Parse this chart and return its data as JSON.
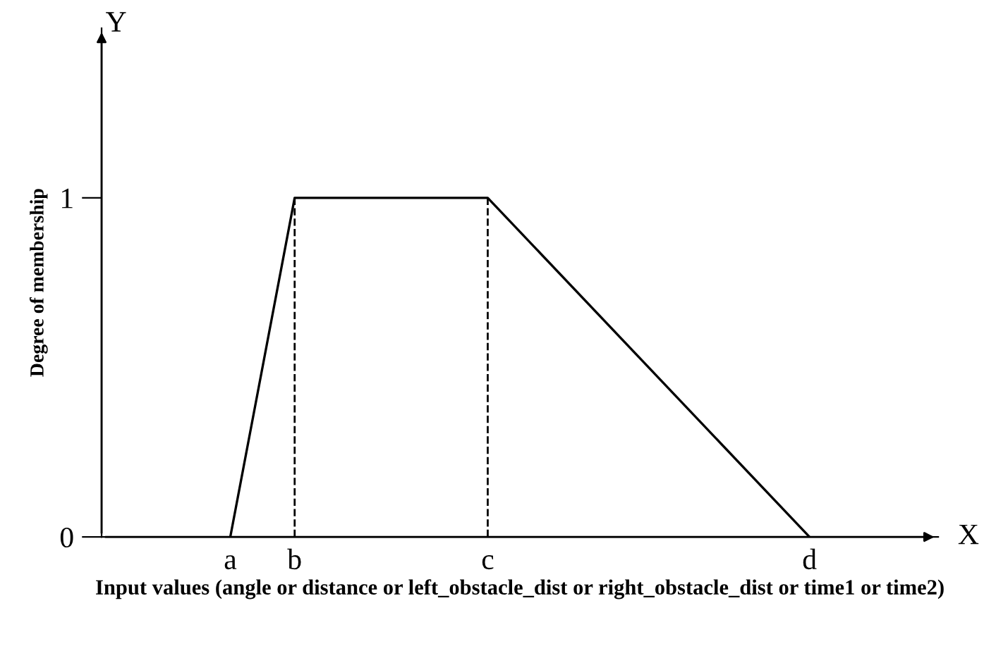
{
  "chart_data": {
    "type": "line",
    "xlabel": "Input values (angle or distance or left_obstacle_dist or right_obstacle_dist or time1 or time2)",
    "ylabel": "Degree of membership",
    "categories": [
      null,
      null,
      "a",
      "b",
      null,
      null,
      "c",
      null,
      null,
      null,
      null,
      "d",
      null,
      null
    ],
    "series": [
      {
        "color": "#000000",
        "values": [
          null,
          null,
          0,
          1,
          null,
          null,
          1,
          null,
          null,
          null,
          null,
          0,
          null,
          null
        ],
        "line_style": "solid"
      }
    ],
    "ref_lines": [
      {
        "axis": "x",
        "value": "b",
        "color": "#000000",
        "line_style": "dashed"
      },
      {
        "axis": "x",
        "value": "c",
        "color": "#000000",
        "line_style": "dashed"
      }
    ],
    "ylim": [
      0,
      1.5
    ],
    "yticks": [
      0,
      1
    ],
    "annotations": [
      "Y",
      "X"
    ],
    "grid": false,
    "legend": false,
    "marker": "none"
  }
}
